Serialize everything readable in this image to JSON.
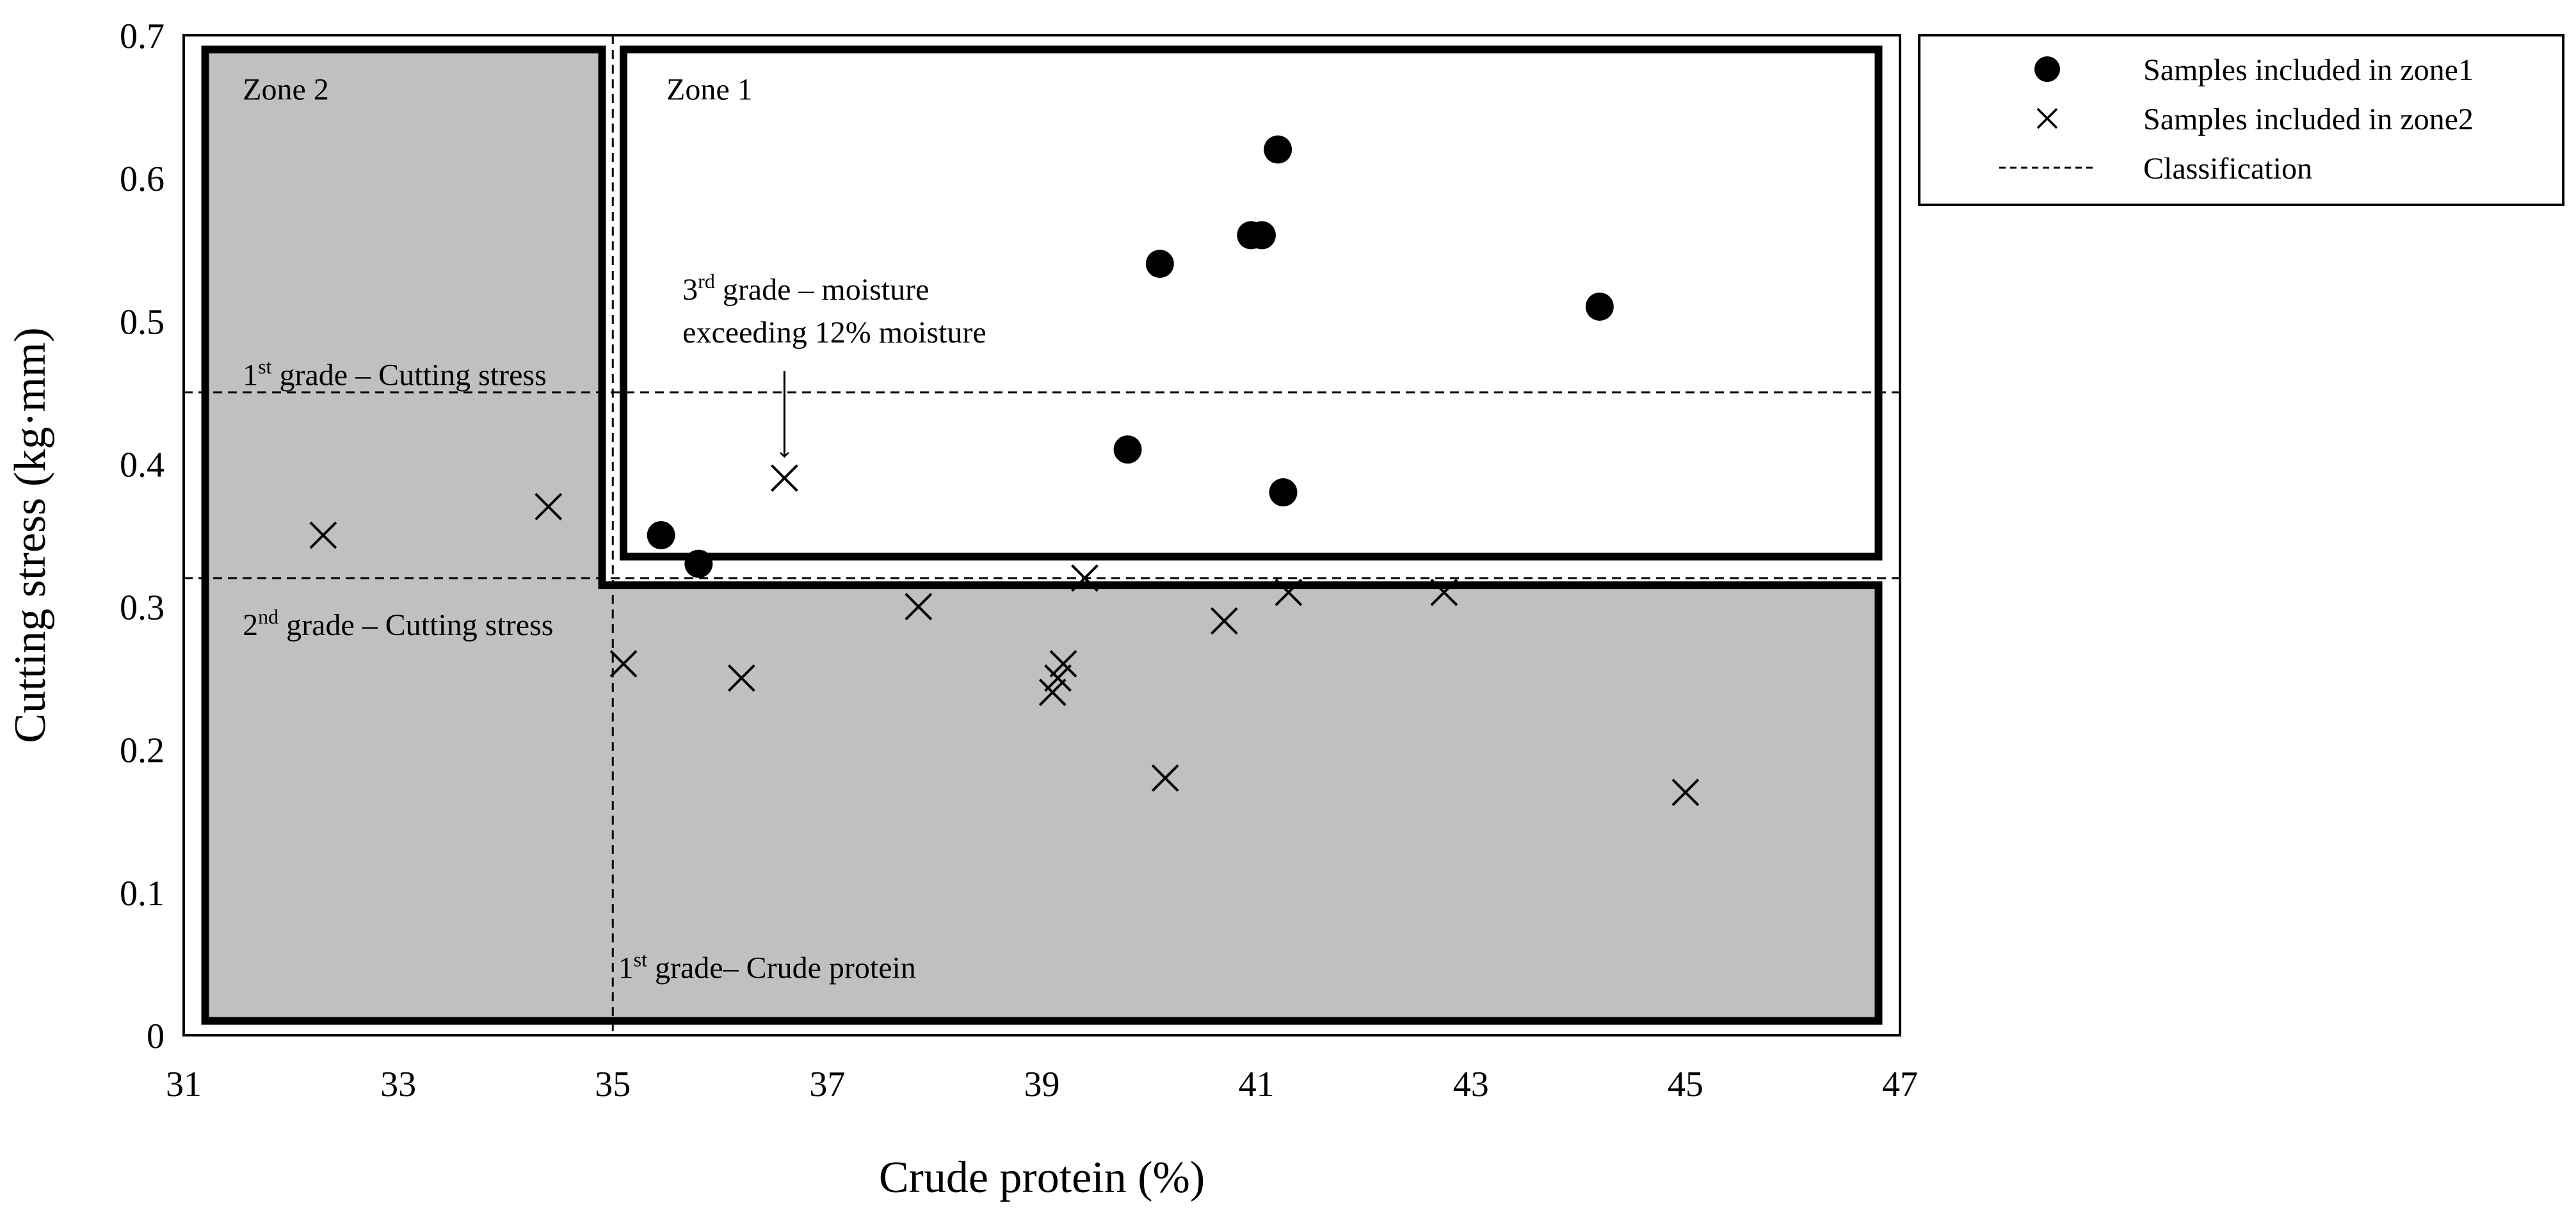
{
  "chart_data": {
    "type": "scatter",
    "title": "",
    "xlabel": "Crude protein (%)",
    "ylabel": "Cutting stress (kg·mm)",
    "xlim": [
      31,
      47
    ],
    "ylim": [
      0,
      0.7
    ],
    "xticks": [
      31,
      33,
      35,
      37,
      39,
      41,
      43,
      45,
      47
    ],
    "yticks": [
      0,
      0.1,
      0.2,
      0.3,
      0.4,
      0.5,
      0.6,
      0.7
    ],
    "xtick_labels": [
      "31",
      "33",
      "35",
      "37",
      "39",
      "41",
      "43",
      "45",
      "47"
    ],
    "ytick_labels": [
      "0",
      "0.1",
      "0.2",
      "0.3",
      "0.4",
      "0.5",
      "0.6",
      "0.7"
    ],
    "grid": false,
    "legend_position": "outside-right-top",
    "series": [
      {
        "name": "Samples included in zone1",
        "marker": "circle",
        "points": [
          {
            "x": 35.45,
            "y": 0.35
          },
          {
            "x": 35.8,
            "y": 0.33
          },
          {
            "x": 39.8,
            "y": 0.41
          },
          {
            "x": 40.1,
            "y": 0.54
          },
          {
            "x": 40.95,
            "y": 0.56
          },
          {
            "x": 41.05,
            "y": 0.56
          },
          {
            "x": 41.2,
            "y": 0.62
          },
          {
            "x": 41.25,
            "y": 0.38
          },
          {
            "x": 44.2,
            "y": 0.51
          }
        ]
      },
      {
        "name": "Samples included in zone2",
        "marker": "x",
        "points": [
          {
            "x": 32.3,
            "y": 0.35
          },
          {
            "x": 34.4,
            "y": 0.37
          },
          {
            "x": 35.1,
            "y": 0.26
          },
          {
            "x": 36.2,
            "y": 0.25
          },
          {
            "x": 36.6,
            "y": 0.39
          },
          {
            "x": 37.85,
            "y": 0.3
          },
          {
            "x": 39.1,
            "y": 0.24
          },
          {
            "x": 39.15,
            "y": 0.25
          },
          {
            "x": 39.2,
            "y": 0.26
          },
          {
            "x": 39.4,
            "y": 0.32
          },
          {
            "x": 40.15,
            "y": 0.18
          },
          {
            "x": 40.7,
            "y": 0.29
          },
          {
            "x": 41.3,
            "y": 0.31
          },
          {
            "x": 42.75,
            "y": 0.31
          },
          {
            "x": 45.0,
            "y": 0.17
          }
        ]
      }
    ],
    "classification_lines": [
      {
        "orientation": "horizontal",
        "value": 0.45,
        "label": "1st grade – Cutting stress"
      },
      {
        "orientation": "horizontal",
        "value": 0.32,
        "label": "2nd grade – Cutting stress"
      },
      {
        "orientation": "vertical",
        "value": 35.0,
        "label": "1st grade– Crude protein"
      }
    ],
    "zones": [
      {
        "name": "Zone 1",
        "fill": "#ffffff",
        "x_range": [
          35.1,
          46.8
        ],
        "y_range": [
          0.335,
          0.69
        ]
      },
      {
        "name": "Zone 2",
        "fill": "#c0c0c0",
        "polygon": [
          [
            31.2,
            0.69
          ],
          [
            34.9,
            0.69
          ],
          [
            34.9,
            0.315
          ],
          [
            46.8,
            0.315
          ],
          [
            46.8,
            0.01
          ],
          [
            31.2,
            0.01
          ]
        ]
      }
    ],
    "labels": {
      "zone1": "Zone 1",
      "zone2": "Zone 2",
      "first_cutting": {
        "prefix": "1",
        "sup": "st",
        "rest": " grade – Cutting stress"
      },
      "second_cutting": {
        "prefix": "2",
        "sup": "nd",
        "rest": " grade – Cutting stress"
      },
      "first_protein": {
        "prefix": "1",
        "sup": "st",
        "rest": " grade– Crude protein"
      },
      "third_moisture_line1": {
        "prefix": "3",
        "sup": "rd",
        "rest": " grade – moisture"
      },
      "third_moisture_line2": "exceeding 12% moisture"
    },
    "annotation_arrow_target": {
      "x": 36.6,
      "y": 0.39
    },
    "legend": [
      {
        "marker": "circle",
        "label": "Samples included in zone1"
      },
      {
        "marker": "x",
        "label": "Samples included in zone2"
      },
      {
        "marker": "dash",
        "label": "Classification"
      }
    ]
  }
}
